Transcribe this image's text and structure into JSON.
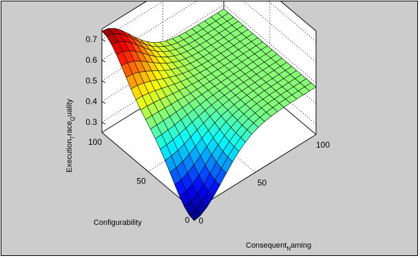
{
  "chart_data": {
    "type": "surface",
    "title": "",
    "xlabel": "Consequent",
    "xlabel_sub": "N",
    "xlabel_rest": "aming",
    "ylabel": "Configurability",
    "zlabel": "Execution",
    "zlabel_sub1": "T",
    "zlabel_mid": "race",
    "zlabel_sub2": "Q",
    "zlabel_rest": "uality",
    "xlim": [
      0,
      100
    ],
    "ylim": [
      0,
      100
    ],
    "zlim": [
      0.25,
      0.75
    ],
    "x_ticks": [
      "0",
      "50",
      "100"
    ],
    "y_ticks": [
      "0",
      "50",
      "100"
    ],
    "z_ticks": [
      "0.3",
      "0.4",
      "0.5",
      "0.6",
      "0.7"
    ],
    "x": [
      0,
      5.26,
      10.53,
      15.79,
      21.05,
      26.32,
      31.58,
      36.84,
      42.11,
      47.37,
      52.63,
      57.89,
      63.16,
      68.42,
      73.68,
      78.95,
      84.21,
      89.47,
      94.74,
      100
    ],
    "y": [
      0,
      5.26,
      10.53,
      15.79,
      21.05,
      26.32,
      31.58,
      36.84,
      42.11,
      47.37,
      52.63,
      57.89,
      63.16,
      68.42,
      73.68,
      78.95,
      84.21,
      89.47,
      94.74,
      100
    ],
    "z_description_values": {
      "plateau": 0.48,
      "peak_at_x_0_y_100": 0.74,
      "valley_at_x_0_y_0": 0.2
    },
    "grid": true,
    "colormap": "jet"
  }
}
